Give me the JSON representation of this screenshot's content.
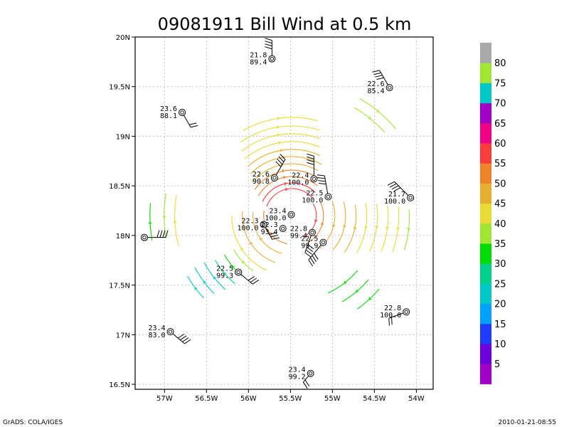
{
  "title": "09081911 Bill Wind at 0.5 km",
  "footer": {
    "left": "GrADS: COLA/IGES",
    "right": "2010-01-21-08:55"
  },
  "axes": {
    "lon_ticks": [
      {
        "value": -57.0,
        "label": "57W"
      },
      {
        "value": -56.5,
        "label": "56.5W"
      },
      {
        "value": -56.0,
        "label": "56W"
      },
      {
        "value": -55.5,
        "label": "55.5W"
      },
      {
        "value": -55.0,
        "label": "55W"
      },
      {
        "value": -54.5,
        "label": "54.5W"
      },
      {
        "value": -54.0,
        "label": "54W"
      }
    ],
    "lat_ticks": [
      {
        "value": 16.5,
        "label": "16.5N"
      },
      {
        "value": 17.0,
        "label": "17N"
      },
      {
        "value": 17.5,
        "label": "17.5N"
      },
      {
        "value": 18.0,
        "label": "18N"
      },
      {
        "value": 18.5,
        "label": "18.5N"
      },
      {
        "value": 19.0,
        "label": "19N"
      },
      {
        "value": 19.5,
        "label": "19.5N"
      },
      {
        "value": 20.0,
        "label": "20N"
      }
    ],
    "lon_range": [
      -57.35,
      -53.8
    ],
    "lat_range": [
      16.45,
      20.0
    ],
    "grid": true
  },
  "center": {
    "lon": -55.48,
    "lat": 18.2
  },
  "colorbar": [
    {
      "label": "5",
      "color": "#a000c8"
    },
    {
      "label": "10",
      "color": "#6e00dc"
    },
    {
      "label": "15",
      "color": "#1e3cff"
    },
    {
      "label": "20",
      "color": "#00a0ff"
    },
    {
      "label": "25",
      "color": "#00c8c8"
    },
    {
      "label": "30",
      "color": "#00d28c"
    },
    {
      "label": "35",
      "color": "#00dc00"
    },
    {
      "label": "40",
      "color": "#a0e632"
    },
    {
      "label": "45",
      "color": "#e6dc32"
    },
    {
      "label": "50",
      "color": "#e6af2d"
    },
    {
      "label": "55",
      "color": "#f08228"
    },
    {
      "label": "60",
      "color": "#fa3c3c"
    },
    {
      "label": "65",
      "color": "#f00082"
    },
    {
      "label": "70",
      "color": "#a000c8"
    },
    {
      "label": "75",
      "color": "#00c8c8"
    },
    {
      "label": "80",
      "color": "#a0e632"
    },
    {
      "label": "",
      "color": "#aaaaaa"
    }
  ],
  "stations": [
    {
      "lon": -55.72,
      "lat": 19.78,
      "t1": "21.8",
      "t2": "89.4",
      "barb_dir": 90,
      "barb_len": 26,
      "flags": 4
    },
    {
      "lon": -54.32,
      "lat": 19.49,
      "t1": "22.6",
      "t2": "85.4",
      "barb_dir": 120,
      "barb_len": 28,
      "flags": 4
    },
    {
      "lon": -56.79,
      "lat": 19.24,
      "t1": "23.6",
      "t2": "88.1",
      "barb_dir": 300,
      "barb_len": 24,
      "flags": 2
    },
    {
      "lon": -55.69,
      "lat": 18.58,
      "t1": "22.6",
      "t2": "90.8",
      "barb_dir": 60,
      "barb_len": 30,
      "flags": 4
    },
    {
      "lon": -55.22,
      "lat": 18.57,
      "t1": "22.4",
      "t2": "100.0",
      "barb_dir": 90,
      "barb_len": 32,
      "flags": 4
    },
    {
      "lon": -55.05,
      "lat": 18.39,
      "t1": "22.5",
      "t2": "100.0",
      "barb_dir": 100,
      "barb_len": 30,
      "flags": 4
    },
    {
      "lon": -54.07,
      "lat": 18.38,
      "t1": "21.7",
      "t2": "100.0",
      "barb_dir": 135,
      "barb_len": 32,
      "flags": 4
    },
    {
      "lon": -55.49,
      "lat": 18.21,
      "t1": "23.4",
      "t2": "100.0",
      "barb_dir": 0,
      "barb_len": 0,
      "flags": 0
    },
    {
      "lon": -55.82,
      "lat": 18.11,
      "t1": "22.3",
      "t2": "100.0",
      "barb_dir": 300,
      "barb_len": 24,
      "flags": 3
    },
    {
      "lon": -55.59,
      "lat": 18.07,
      "t1": "22.3",
      "t2": "93.4",
      "barb_dir": 0,
      "barb_len": 0,
      "flags": 0
    },
    {
      "lon": -55.24,
      "lat": 18.03,
      "t1": "22.8",
      "t2": "99.4",
      "barb_dir": 250,
      "barb_len": 30,
      "flags": 4
    },
    {
      "lon": -55.11,
      "lat": 17.93,
      "t1": "22.5",
      "t2": "99.9",
      "barb_dir": 230,
      "barb_len": 32,
      "flags": 4
    },
    {
      "lon": -57.24,
      "lat": 17.98,
      "t1": "",
      "t2": "",
      "barb_dir": 0,
      "barb_len": 30,
      "flags": 4
    },
    {
      "lon": -56.12,
      "lat": 17.63,
      "t1": "22.5",
      "t2": "99.3",
      "barb_dir": 320,
      "barb_len": 26,
      "flags": 3
    },
    {
      "lon": -54.12,
      "lat": 17.23,
      "t1": "22.8",
      "t2": "100.0",
      "barb_dir": 200,
      "barb_len": 26,
      "flags": 2
    },
    {
      "lon": -56.93,
      "lat": 17.03,
      "t1": "23.4",
      "t2": "83.0",
      "barb_dir": 320,
      "barb_len": 26,
      "flags": 4
    },
    {
      "lon": -55.26,
      "lat": 16.61,
      "t1": "23.4",
      "t2": "99.2",
      "barb_dir": 230,
      "barb_len": 16,
      "flags": 2
    }
  ]
}
